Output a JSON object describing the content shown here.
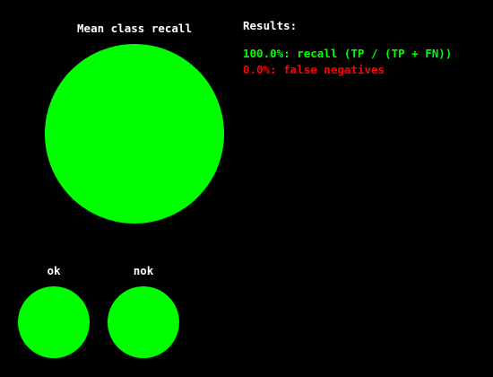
{
  "colors": {
    "background": "#000000",
    "text": "#ffffff",
    "good": "#00ff00",
    "bad": "#ff0000"
  },
  "chart_data": {
    "type": "pie",
    "charts": [
      {
        "title": "Mean class recall",
        "slices": [
          {
            "label": "recall",
            "value": 100.0,
            "color": "#00ff00"
          },
          {
            "label": "false negatives",
            "value": 0.0,
            "color": "#ff0000"
          }
        ]
      },
      {
        "title": "ok",
        "slices": [
          {
            "label": "recall",
            "value": 100.0,
            "color": "#00ff00"
          },
          {
            "label": "false negatives",
            "value": 0.0,
            "color": "#ff0000"
          }
        ]
      },
      {
        "title": "nok",
        "slices": [
          {
            "label": "recall",
            "value": 100.0,
            "color": "#00ff00"
          },
          {
            "label": "false negatives",
            "value": 0.0,
            "color": "#ff0000"
          }
        ]
      }
    ]
  },
  "results": {
    "title": "Results:",
    "lines": [
      {
        "text": "100.0%: recall (TP / (TP + FN))",
        "color": "#00ff00"
      },
      {
        "text": "0.0%: false negatives",
        "color": "#ff0000"
      }
    ]
  }
}
